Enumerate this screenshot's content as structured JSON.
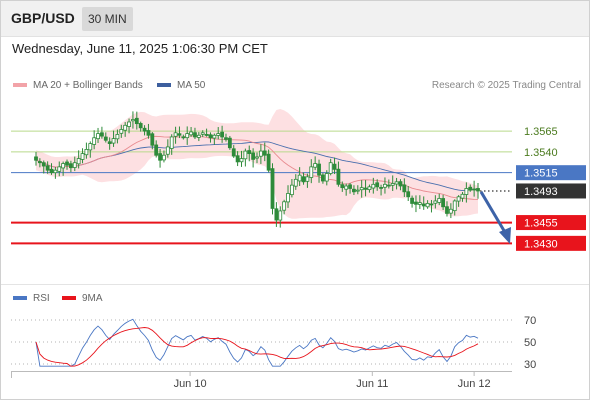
{
  "header": {
    "symbol": "GBP/USD",
    "timeframe": "30 MIN",
    "datetime": "Wednesday, June 11, 2025 1:06:30 PM CET"
  },
  "legend": {
    "ma20_bb": "MA 20 + Bollinger Bands",
    "ma50": "MA 50",
    "credit": "Research © 2025 Trading Central",
    "rsi": "RSI",
    "ma9": "9MA"
  },
  "colors": {
    "bollinger_fill": "#fde0e2",
    "ma20": "#e88a8f",
    "ma50": "#4a6fae",
    "candle": "#2e8b3a",
    "resistance": "#b9d98b",
    "pivot": "#4a77c4",
    "support": "#e8141c",
    "current": "#333333",
    "rsi": "#4a77c4",
    "ma9": "#e8141c"
  },
  "chart_data": [
    {
      "type": "candlestick",
      "instrument": "GBP/USD",
      "timeframe": "30 MIN",
      "ylim": [
        1.3422,
        1.3588
      ],
      "x_ticks": [
        "Jun 10",
        "Jun 11",
        "Jun 12"
      ],
      "price_levels": [
        {
          "label": "1.3565",
          "value": 1.3565,
          "role": "resistance"
        },
        {
          "label": "1.3540",
          "value": 1.354,
          "role": "resistance"
        },
        {
          "label": "1.3515",
          "value": 1.3515,
          "role": "pivot"
        },
        {
          "label": "1.3493",
          "value": 1.3493,
          "role": "current"
        },
        {
          "label": "1.3455",
          "value": 1.3455,
          "role": "support"
        },
        {
          "label": "1.3430",
          "value": 1.343,
          "role": "support"
        }
      ],
      "projection": {
        "from": 1.3492,
        "to": 1.3428,
        "direction": "down"
      },
      "close": [
        1.353,
        1.3527,
        1.3523,
        1.3518,
        1.3515,
        1.3518,
        1.3522,
        1.3526,
        1.3524,
        1.3521,
        1.3527,
        1.3532,
        1.3538,
        1.3543,
        1.355,
        1.3557,
        1.3562,
        1.3559,
        1.3554,
        1.355,
        1.3556,
        1.3561,
        1.3567,
        1.3572,
        1.3576,
        1.3579,
        1.3574,
        1.3569,
        1.3565,
        1.356,
        1.3548,
        1.3536,
        1.353,
        1.3536,
        1.3546,
        1.3558,
        1.3563,
        1.356,
        1.3557,
        1.3562,
        1.3564,
        1.3558,
        1.356,
        1.3563,
        1.3561,
        1.3557,
        1.356,
        1.3562,
        1.3558,
        1.3555,
        1.3545,
        1.3535,
        1.3528,
        1.3532,
        1.3541,
        1.3538,
        1.3531,
        1.3534,
        1.3541,
        1.3536,
        1.3518,
        1.3472,
        1.3458,
        1.3469,
        1.348,
        1.349,
        1.35,
        1.3507,
        1.3512,
        1.3504,
        1.351,
        1.3522,
        1.3526,
        1.3512,
        1.3505,
        1.3514,
        1.3527,
        1.3519,
        1.3501,
        1.3497,
        1.3499,
        1.3496,
        1.3492,
        1.3494,
        1.3497,
        1.3495,
        1.3498,
        1.3501,
        1.3498,
        1.3497,
        1.3501,
        1.3499,
        1.3502,
        1.3504,
        1.3499,
        1.3492,
        1.3486,
        1.3478,
        1.3477,
        1.3479,
        1.3475,
        1.3478,
        1.3477,
        1.3481,
        1.3484,
        1.3474,
        1.3466,
        1.3471,
        1.3481,
        1.3486,
        1.3489,
        1.3496,
        1.3494,
        1.3495,
        1.3493
      ]
    },
    {
      "type": "line",
      "name": "RSI panel",
      "series": [
        {
          "name": "RSI"
        },
        {
          "name": "9MA"
        }
      ],
      "ylim": [
        20,
        80
      ],
      "y_ticks": [
        70,
        50,
        30
      ],
      "reference_levels": [
        70,
        50,
        30
      ]
    }
  ]
}
